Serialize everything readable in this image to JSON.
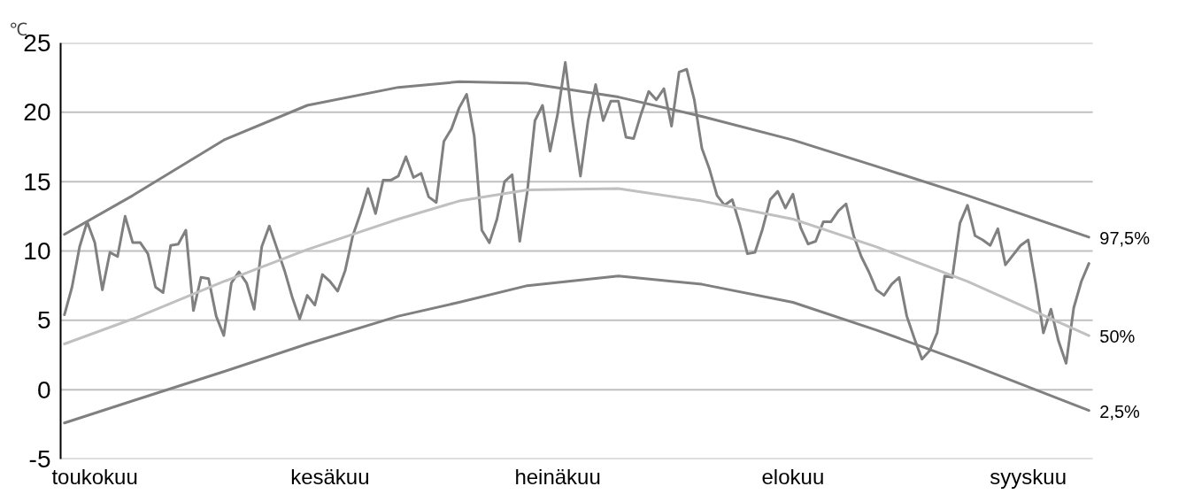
{
  "chart_data": {
    "type": "line",
    "ylabel": "℃",
    "ylim": [
      -5,
      25
    ],
    "yticks": [
      -5,
      0,
      5,
      10,
      15,
      20,
      25
    ],
    "categories": [
      null,
      null,
      null,
      null,
      "toukokuu",
      null,
      null,
      null,
      null,
      null,
      null,
      null,
      null,
      null,
      null,
      null,
      null,
      null,
      null,
      null,
      null,
      null,
      null,
      null,
      null,
      null,
      null,
      null,
      null,
      null,
      null,
      null,
      null,
      null,
      null,
      "kesäkuu",
      null,
      null,
      null,
      null,
      null,
      null,
      null,
      null,
      null,
      null,
      null,
      null,
      null,
      null,
      null,
      null,
      null,
      null,
      null,
      null,
      null,
      null,
      null,
      null,
      null,
      null,
      null,
      null,
      null,
      "heinäkuu",
      null,
      null,
      null,
      null,
      null,
      null,
      null,
      null,
      null,
      null,
      null,
      null,
      null,
      null,
      null,
      null,
      null,
      null,
      null,
      null,
      null,
      null,
      null,
      null,
      null,
      null,
      null,
      null,
      null,
      null,
      "elokuu",
      null,
      null,
      null,
      null,
      null,
      null,
      null,
      null,
      null,
      null,
      null,
      null,
      null,
      null,
      null,
      null,
      null,
      null,
      null,
      null,
      null,
      null,
      null,
      null,
      null,
      null,
      null,
      null,
      null,
      null,
      "syyskuu",
      null,
      null,
      null,
      null,
      null,
      null,
      null,
      null
    ],
    "grid": "y",
    "series": [
      {
        "color": "#808080",
        "values": [
          5.4,
          7.4,
          10.3,
          12.1,
          10.6,
          7.2,
          9.9,
          9.6,
          12.5,
          10.6,
          10.6,
          9.8,
          7.4,
          7.0,
          10.4,
          10.5,
          11.5,
          5.7,
          8.1,
          8.0,
          5.3,
          3.9,
          7.7,
          8.5,
          7.7,
          5.8,
          10.3,
          11.8,
          10.2,
          8.6,
          6.7,
          5.1,
          6.8,
          6.1,
          8.3,
          7.8,
          7.1,
          8.6,
          11.1,
          12.7,
          14.5,
          12.7,
          15.1,
          15.1,
          15.4,
          16.8,
          15.3,
          15.6,
          13.9,
          13.5,
          17.9,
          18.8,
          20.3,
          21.3,
          18.3,
          11.5,
          10.6,
          12.3,
          15.0,
          15.5,
          10.7,
          14.3,
          19.4,
          20.5,
          17.2,
          19.9,
          23.6,
          19.2,
          15.4,
          19.4,
          22.0,
          19.4,
          20.8,
          20.8,
          18.2,
          18.1,
          19.9,
          21.5,
          20.9,
          21.7,
          19.0,
          22.9,
          23.1,
          20.9,
          17.4,
          15.9,
          14.0,
          13.3,
          13.7,
          11.9,
          9.8,
          9.9,
          11.6,
          13.7,
          14.3,
          13.1,
          14.1,
          11.7,
          10.5,
          10.7,
          12.1,
          12.1,
          12.9,
          13.4,
          11.1,
          9.6,
          8.5,
          7.2,
          6.8,
          7.6,
          8.1,
          5.3,
          3.7,
          2.2,
          2.8,
          4.1,
          8.2,
          8.1,
          12.0,
          13.3,
          11.1,
          10.8,
          10.4,
          11.6,
          9.0,
          9.7,
          10.4,
          10.8,
          7.6,
          4.1,
          5.8,
          3.5,
          1.9,
          5.9,
          7.8,
          9.1
        ]
      },
      {
        "name": "97,5%",
        "color": "#808080",
        "values": [
          11.2,
          null,
          null,
          null,
          null,
          null,
          null,
          null,
          null,
          14.0,
          null,
          null,
          null,
          null,
          null,
          null,
          null,
          null,
          null,
          null,
          null,
          18.0,
          null,
          null,
          null,
          null,
          null,
          null,
          null,
          null,
          null,
          null,
          20.5,
          null,
          null,
          null,
          null,
          null,
          null,
          null,
          null,
          null,
          null,
          null,
          21.8,
          null,
          null,
          null,
          null,
          null,
          null,
          null,
          22.2,
          null,
          null,
          null,
          null,
          null,
          null,
          null,
          null,
          22.1,
          null,
          null,
          null,
          null,
          null,
          null,
          null,
          null,
          null,
          null,
          null,
          21.1,
          null,
          null,
          null,
          null,
          null,
          null,
          null,
          null,
          null,
          null,
          19.7,
          null,
          null,
          null,
          null,
          null,
          null,
          null,
          null,
          null,
          null,
          null,
          18.0,
          null,
          null,
          null,
          null,
          null,
          null,
          null,
          null,
          null,
          null,
          16.1,
          null,
          null,
          null,
          null,
          null,
          null,
          null,
          null,
          null,
          null,
          null,
          14.0,
          null,
          null,
          null,
          null,
          null,
          null,
          null,
          null,
          null,
          null,
          null,
          null,
          null,
          null,
          null,
          11.0
        ]
      },
      {
        "name": "50%",
        "color": "#c0c0c0",
        "values": [
          3.3,
          null,
          null,
          null,
          null,
          null,
          null,
          null,
          null,
          5.1,
          null,
          null,
          null,
          null,
          null,
          null,
          null,
          null,
          null,
          null,
          null,
          7.8,
          null,
          null,
          null,
          null,
          null,
          null,
          null,
          null,
          null,
          null,
          10.1,
          null,
          null,
          null,
          null,
          null,
          null,
          null,
          null,
          null,
          null,
          null,
          12.3,
          null,
          null,
          null,
          null,
          null,
          null,
          null,
          13.6,
          null,
          null,
          null,
          null,
          null,
          null,
          null,
          null,
          14.4,
          null,
          null,
          null,
          null,
          null,
          null,
          null,
          null,
          null,
          null,
          null,
          14.5,
          null,
          null,
          null,
          null,
          null,
          null,
          null,
          null,
          null,
          null,
          13.6,
          null,
          null,
          null,
          null,
          null,
          null,
          null,
          null,
          null,
          null,
          null,
          12.3,
          null,
          null,
          null,
          null,
          null,
          null,
          null,
          null,
          null,
          null,
          10.3,
          null,
          null,
          null,
          null,
          null,
          null,
          null,
          null,
          null,
          null,
          null,
          7.8,
          null,
          null,
          null,
          null,
          null,
          null,
          null,
          null,
          null,
          null,
          null,
          null,
          null,
          null,
          null,
          3.9
        ]
      },
      {
        "name": "2,5%",
        "color": "#808080",
        "values": [
          -2.4,
          null,
          null,
          null,
          null,
          null,
          null,
          null,
          null,
          -0.8,
          null,
          null,
          null,
          null,
          null,
          null,
          null,
          null,
          null,
          null,
          null,
          1.3,
          null,
          null,
          null,
          null,
          null,
          null,
          null,
          null,
          null,
          null,
          3.3,
          null,
          null,
          null,
          null,
          null,
          null,
          null,
          null,
          null,
          null,
          null,
          5.3,
          null,
          null,
          null,
          null,
          null,
          null,
          null,
          6.3,
          null,
          null,
          null,
          null,
          null,
          null,
          null,
          null,
          7.5,
          null,
          null,
          null,
          null,
          null,
          null,
          null,
          null,
          null,
          null,
          null,
          8.2,
          null,
          null,
          null,
          null,
          null,
          null,
          null,
          null,
          null,
          null,
          7.6,
          null,
          null,
          null,
          null,
          null,
          null,
          null,
          null,
          null,
          null,
          null,
          6.3,
          null,
          null,
          null,
          null,
          null,
          null,
          null,
          null,
          null,
          null,
          4.3,
          null,
          null,
          null,
          null,
          null,
          null,
          null,
          null,
          null,
          null,
          null,
          1.9,
          null,
          null,
          null,
          null,
          null,
          null,
          null,
          null,
          null,
          null,
          null,
          null,
          null,
          null,
          null,
          -1.5
        ]
      }
    ]
  }
}
